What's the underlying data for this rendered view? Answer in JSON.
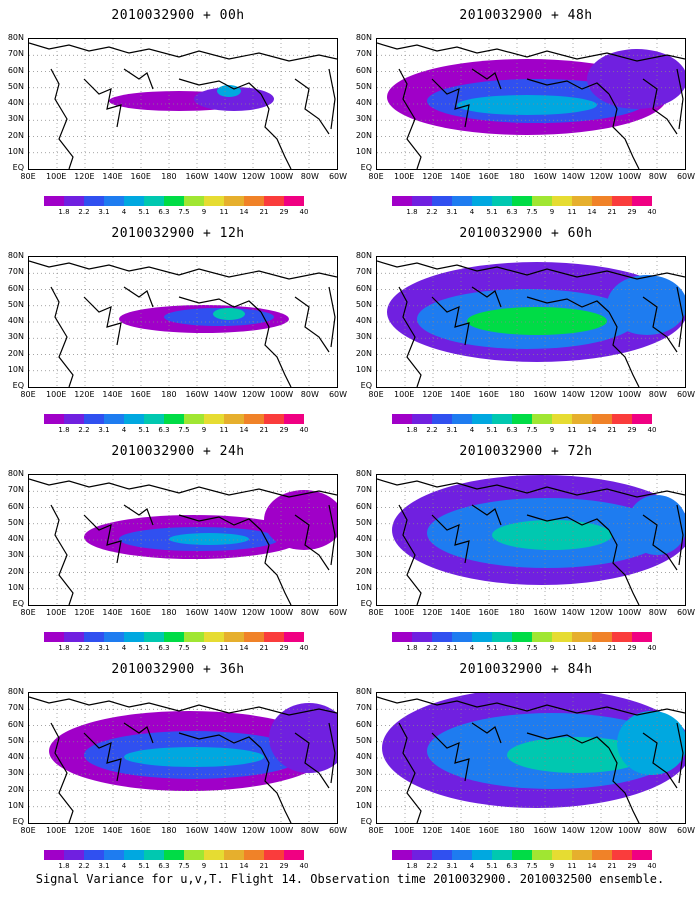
{
  "figure_caption": "Signal Variance for u,v,T. Flight 14. Observation time 2010032900. 2010032500 ensemble.",
  "lat_labels": [
    "80N",
    "70N",
    "60N",
    "50N",
    "40N",
    "30N",
    "20N",
    "10N",
    "EQ"
  ],
  "lon_labels": [
    "80E",
    "100E",
    "120E",
    "140E",
    "160E",
    "180",
    "160W",
    "140W",
    "120W",
    "100W",
    "80W",
    "60W"
  ],
  "colorbar": {
    "levels": [
      "1.8",
      "2.2",
      "3.1",
      "4",
      "5.1",
      "6.3",
      "7.5",
      "9",
      "11",
      "14",
      "21",
      "29",
      "40"
    ],
    "colors": [
      "#a000c8",
      "#7020e0",
      "#3050f0",
      "#1e7cf0",
      "#00a8e0",
      "#00c8b0",
      "#00dc46",
      "#a0e632",
      "#e6dc32",
      "#e6af2d",
      "#f08228",
      "#fa3c3c",
      "#f00082"
    ]
  },
  "panels": [
    {
      "title": "2010032900 + 00h",
      "lead_hours": 0
    },
    {
      "title": "2010032900 + 48h",
      "lead_hours": 48
    },
    {
      "title": "2010032900 + 12h",
      "lead_hours": 12
    },
    {
      "title": "2010032900 + 60h",
      "lead_hours": 60
    },
    {
      "title": "2010032900 + 24h",
      "lead_hours": 24
    },
    {
      "title": "2010032900 + 72h",
      "lead_hours": 72
    },
    {
      "title": "2010032900 + 36h",
      "lead_hours": 36
    },
    {
      "title": "2010032900 + 84h",
      "lead_hours": 84
    }
  ]
}
